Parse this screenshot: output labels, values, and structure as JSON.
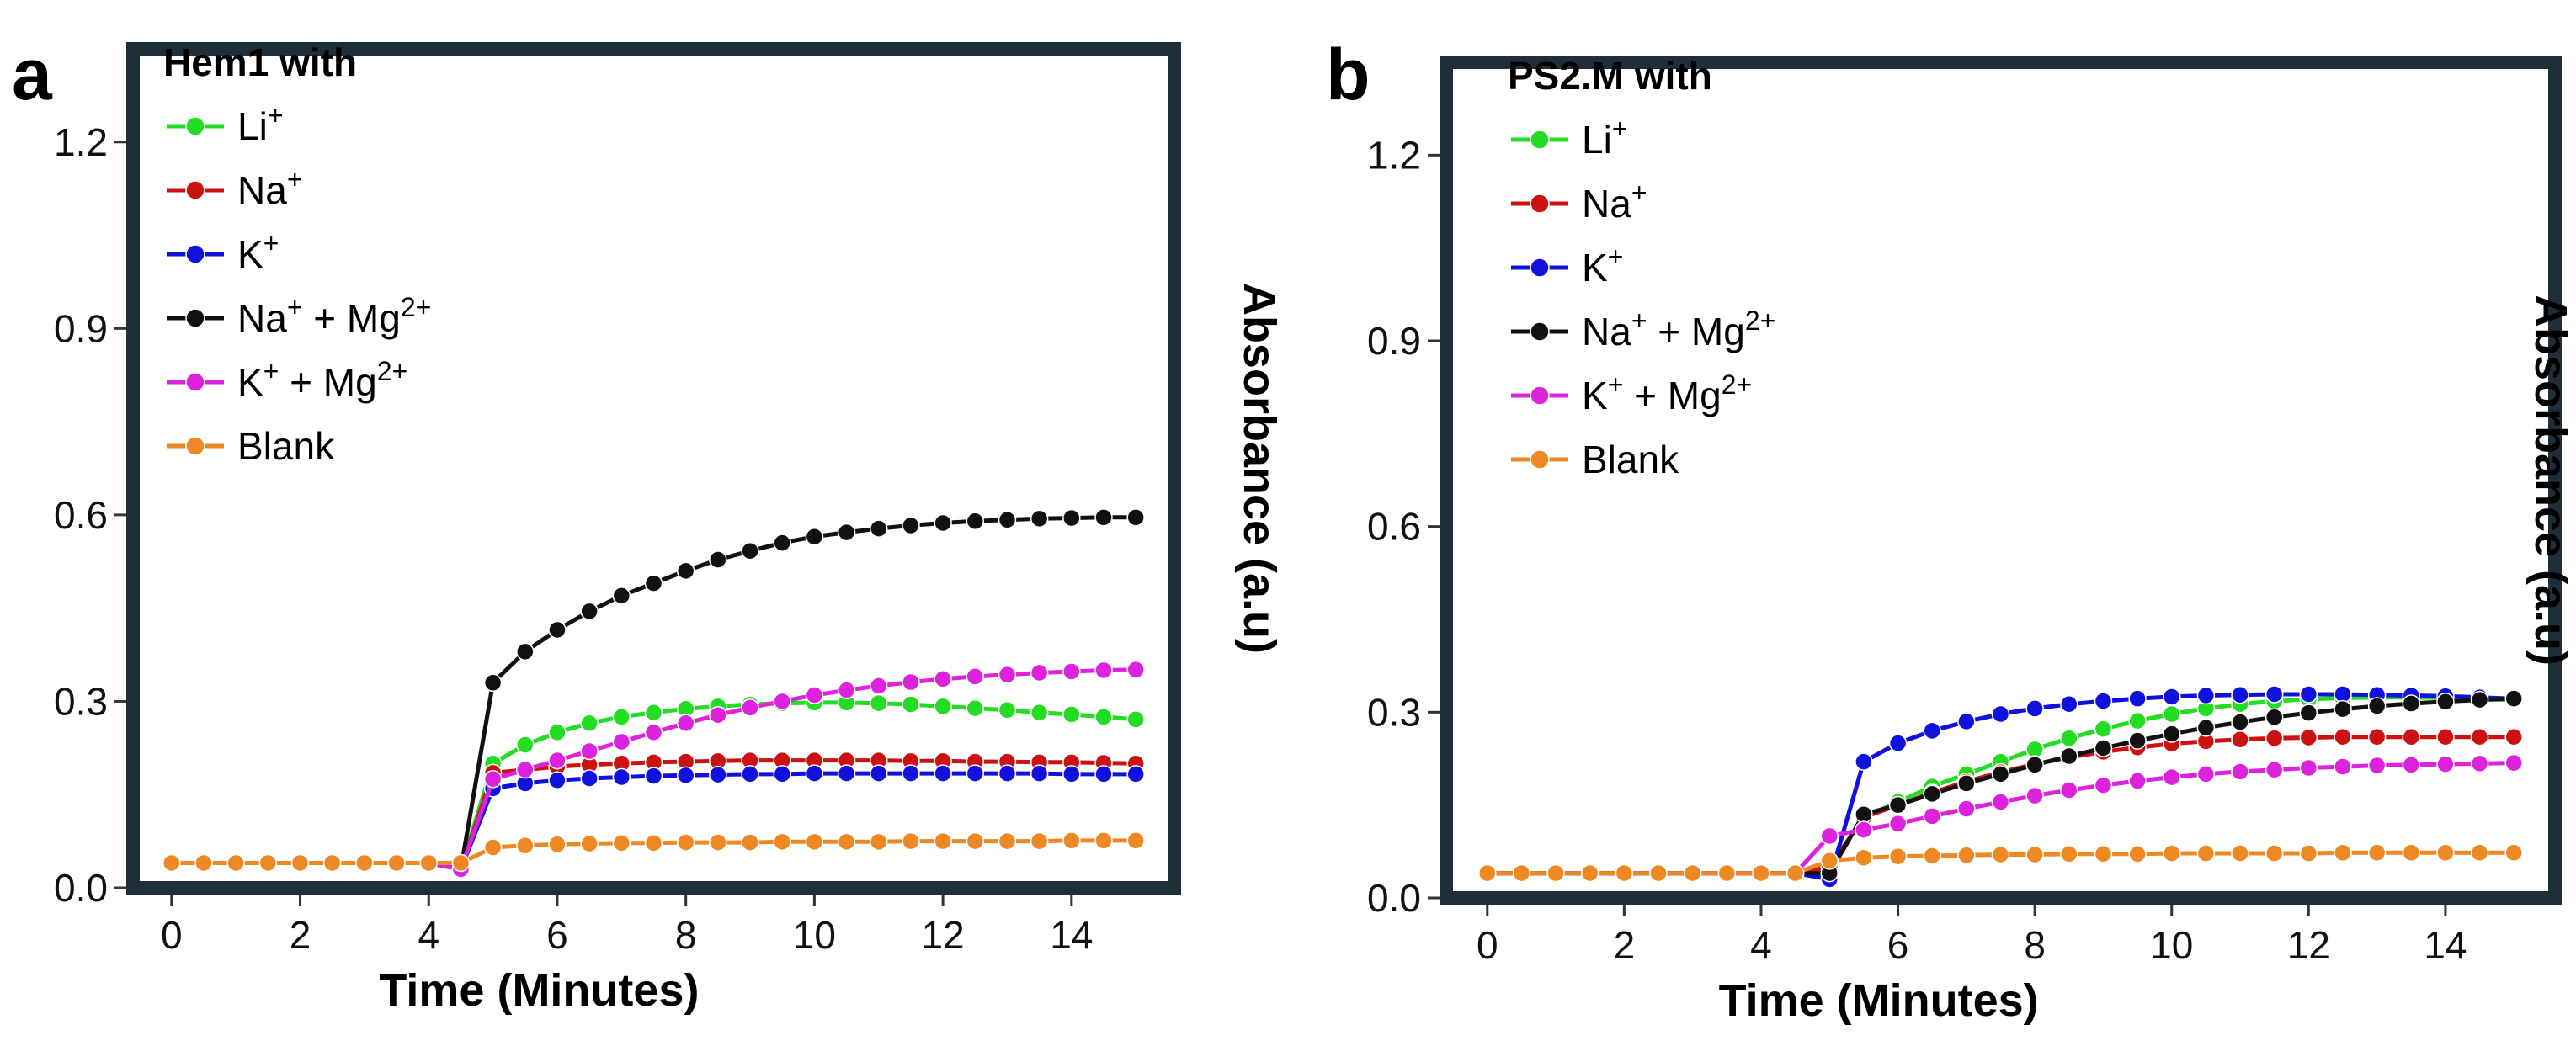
{
  "chart_data": [
    {
      "type": "line",
      "panel_label": "a",
      "title": "",
      "xlabel": "Time (Minutes)",
      "ylabel": "Absorbance (a.u)",
      "xlim": [
        -0.6,
        15.6
      ],
      "ylim": [
        0,
        1.35
      ],
      "xticks": [
        "0",
        "2",
        "4",
        "6",
        "8",
        "10",
        "12",
        "14"
      ],
      "xtick_values": [
        0,
        2,
        4,
        6,
        8,
        10,
        12,
        14
      ],
      "yticks": [
        "0.0",
        "0.3",
        "0.6",
        "0.9",
        "1.2"
      ],
      "ytick_values": [
        0.0,
        0.3,
        0.6,
        0.9,
        1.2
      ],
      "grid": false,
      "legend_title": "Hem1 with",
      "legend_position": "top-left",
      "x": [
        0,
        0.5,
        1,
        1.5,
        2,
        2.5,
        3,
        3.5,
        4,
        4.5,
        5,
        5.5,
        6,
        6.5,
        7,
        7.5,
        8,
        8.5,
        9,
        9.5,
        10,
        10.5,
        11,
        11.5,
        12,
        12.5,
        13,
        13.5,
        14,
        14.5,
        15
      ],
      "series": [
        {
          "name": "Li",
          "sup": "+",
          "color": "#22dd22",
          "values": [
            0.04,
            0.04,
            0.04,
            0.04,
            0.04,
            0.04,
            0.04,
            0.04,
            0.04,
            0.03,
            0.2,
            0.23,
            0.25,
            0.265,
            0.275,
            0.282,
            0.288,
            0.292,
            0.295,
            0.297,
            0.298,
            0.298,
            0.297,
            0.295,
            0.292,
            0.289,
            0.286,
            0.282,
            0.279,
            0.275,
            0.271
          ]
        },
        {
          "name": "Na",
          "sup": "+",
          "color": "#cc1111",
          "values": [
            0.04,
            0.04,
            0.04,
            0.04,
            0.04,
            0.04,
            0.04,
            0.04,
            0.04,
            0.03,
            0.185,
            0.19,
            0.195,
            0.198,
            0.2,
            0.202,
            0.203,
            0.204,
            0.205,
            0.205,
            0.205,
            0.205,
            0.205,
            0.204,
            0.204,
            0.203,
            0.203,
            0.202,
            0.202,
            0.201,
            0.2
          ]
        },
        {
          "name": "K",
          "sup": "+",
          "color": "#1111dd",
          "values": [
            0.04,
            0.04,
            0.04,
            0.04,
            0.04,
            0.04,
            0.04,
            0.04,
            0.04,
            0.03,
            0.16,
            0.168,
            0.173,
            0.176,
            0.178,
            0.18,
            0.181,
            0.182,
            0.183,
            0.183,
            0.184,
            0.184,
            0.184,
            0.184,
            0.184,
            0.184,
            0.184,
            0.184,
            0.183,
            0.183,
            0.183
          ]
        },
        {
          "name": "Na",
          "sup": "+",
          "name2": " + Mg",
          "sup2": "2+",
          "color": "#111111",
          "values": [
            0.04,
            0.04,
            0.04,
            0.04,
            0.04,
            0.04,
            0.04,
            0.04,
            0.04,
            0.03,
            0.33,
            0.38,
            0.415,
            0.445,
            0.47,
            0.49,
            0.51,
            0.528,
            0.542,
            0.555,
            0.565,
            0.572,
            0.578,
            0.583,
            0.587,
            0.59,
            0.592,
            0.594,
            0.595,
            0.596,
            0.596
          ]
        },
        {
          "name": "K",
          "sup": "+",
          "name2": " + Mg",
          "sup2": "2+",
          "color": "#dd22dd",
          "values": [
            0.04,
            0.04,
            0.04,
            0.04,
            0.04,
            0.04,
            0.04,
            0.04,
            0.04,
            0.03,
            0.175,
            0.19,
            0.205,
            0.22,
            0.235,
            0.25,
            0.265,
            0.278,
            0.29,
            0.3,
            0.31,
            0.318,
            0.325,
            0.331,
            0.336,
            0.34,
            0.343,
            0.346,
            0.348,
            0.35,
            0.351
          ]
        },
        {
          "name": "Blank",
          "sup": "",
          "color": "#ee8822",
          "values": [
            0.04,
            0.04,
            0.04,
            0.04,
            0.04,
            0.04,
            0.04,
            0.04,
            0.04,
            0.04,
            0.065,
            0.068,
            0.07,
            0.071,
            0.072,
            0.072,
            0.073,
            0.073,
            0.073,
            0.074,
            0.074,
            0.074,
            0.074,
            0.075,
            0.075,
            0.075,
            0.075,
            0.075,
            0.076,
            0.076,
            0.076
          ]
        }
      ]
    },
    {
      "type": "line",
      "panel_label": "b",
      "title": "",
      "xlabel": "Time (Minutes)",
      "ylabel": "Absorbance (a.u)",
      "xlim": [
        -0.6,
        15.6
      ],
      "ylim": [
        0,
        1.35
      ],
      "xticks": [
        "0",
        "2",
        "4",
        "6",
        "8",
        "10",
        "12",
        "14"
      ],
      "xtick_values": [
        0,
        2,
        4,
        6,
        8,
        10,
        12,
        14
      ],
      "yticks": [
        "0.0",
        "0.3",
        "0.6",
        "0.9",
        "1.2"
      ],
      "ytick_values": [
        0.0,
        0.3,
        0.6,
        0.9,
        1.2
      ],
      "grid": false,
      "legend_title": "PS2.M with",
      "legend_position": "top-left",
      "x": [
        0,
        0.5,
        1,
        1.5,
        2,
        2.5,
        3,
        3.5,
        4,
        4.5,
        5,
        5.5,
        6,
        6.5,
        7,
        7.5,
        8,
        8.5,
        9,
        9.5,
        10,
        10.5,
        11,
        11.5,
        12,
        12.5,
        13,
        13.5,
        14,
        14.5,
        15
      ],
      "series": [
        {
          "name": "Li",
          "sup": "+",
          "color": "#22dd22",
          "values": [
            0.04,
            0.04,
            0.04,
            0.04,
            0.04,
            0.04,
            0.04,
            0.04,
            0.04,
            0.04,
            0.05,
            0.13,
            0.155,
            0.18,
            0.2,
            0.22,
            0.24,
            0.258,
            0.273,
            0.286,
            0.297,
            0.306,
            0.313,
            0.318,
            0.321,
            0.323,
            0.324,
            0.324,
            0.323,
            0.321,
            0.32
          ]
        },
        {
          "name": "Na",
          "sup": "+",
          "color": "#cc1111",
          "values": [
            0.04,
            0.04,
            0.04,
            0.04,
            0.04,
            0.04,
            0.04,
            0.04,
            0.04,
            0.04,
            0.05,
            0.13,
            0.15,
            0.17,
            0.188,
            0.203,
            0.216,
            0.227,
            0.236,
            0.243,
            0.249,
            0.253,
            0.256,
            0.258,
            0.259,
            0.26,
            0.26,
            0.26,
            0.26,
            0.26,
            0.26
          ]
        },
        {
          "name": "K",
          "sup": "+",
          "color": "#1111dd",
          "values": [
            0.04,
            0.04,
            0.04,
            0.04,
            0.04,
            0.04,
            0.04,
            0.04,
            0.04,
            0.04,
            0.03,
            0.22,
            0.25,
            0.27,
            0.285,
            0.297,
            0.306,
            0.313,
            0.318,
            0.322,
            0.325,
            0.327,
            0.328,
            0.329,
            0.329,
            0.329,
            0.328,
            0.327,
            0.326,
            0.324,
            0.322
          ]
        },
        {
          "name": "Na",
          "sup": "+",
          "name2": " + Mg",
          "sup2": "2+",
          "color": "#111111",
          "values": [
            0.04,
            0.04,
            0.04,
            0.04,
            0.04,
            0.04,
            0.04,
            0.04,
            0.04,
            0.04,
            0.04,
            0.135,
            0.15,
            0.168,
            0.185,
            0.2,
            0.215,
            0.229,
            0.242,
            0.254,
            0.265,
            0.275,
            0.284,
            0.292,
            0.299,
            0.305,
            0.31,
            0.314,
            0.317,
            0.32,
            0.322
          ]
        },
        {
          "name": "K",
          "sup": "+",
          "name2": " + Mg",
          "sup2": "2+",
          "color": "#dd22dd",
          "values": [
            0.04,
            0.04,
            0.04,
            0.04,
            0.04,
            0.04,
            0.04,
            0.04,
            0.04,
            0.04,
            0.1,
            0.11,
            0.12,
            0.132,
            0.144,
            0.155,
            0.165,
            0.174,
            0.182,
            0.189,
            0.195,
            0.2,
            0.204,
            0.207,
            0.21,
            0.212,
            0.214,
            0.215,
            0.216,
            0.217,
            0.218
          ]
        },
        {
          "name": "Blank",
          "sup": "",
          "color": "#ee8822",
          "values": [
            0.04,
            0.04,
            0.04,
            0.04,
            0.04,
            0.04,
            0.04,
            0.04,
            0.04,
            0.04,
            0.06,
            0.065,
            0.067,
            0.068,
            0.069,
            0.07,
            0.07,
            0.071,
            0.071,
            0.071,
            0.072,
            0.072,
            0.072,
            0.072,
            0.072,
            0.073,
            0.073,
            0.073,
            0.073,
            0.073,
            0.073
          ]
        }
      ]
    }
  ]
}
